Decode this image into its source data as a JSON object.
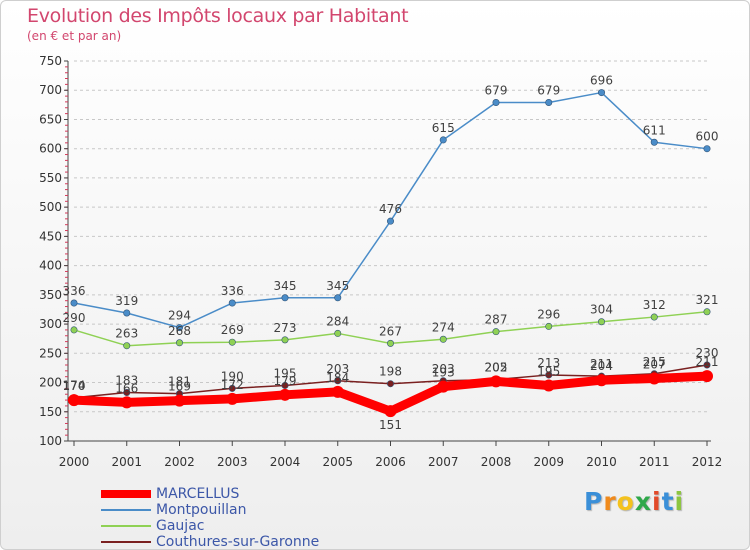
{
  "header": {
    "title": "Evolution des Impôts locaux par Habitant",
    "subtitle": "(en € et par an)"
  },
  "logo": {
    "letters": [
      "P",
      "r",
      "o",
      "x",
      "i",
      "t",
      "i"
    ],
    "colors": [
      "#3a8fd8",
      "#f08a1c",
      "#f4c21e",
      "#2ea84a",
      "#e24a2a",
      "#3a8fd8",
      "#8dc63f"
    ]
  },
  "chart_data": {
    "type": "line",
    "title": "Evolution des Impôts locaux par Habitant",
    "subtitle": "(en € et par an)",
    "xlabel": "",
    "ylabel": "",
    "x": [
      "2000",
      "2001",
      "2002",
      "2003",
      "2004",
      "2005",
      "2006",
      "2007",
      "2008",
      "2009",
      "2010",
      "2011",
      "2012"
    ],
    "ylim": [
      100,
      750
    ],
    "yticks": [
      100,
      150,
      200,
      250,
      300,
      350,
      400,
      450,
      500,
      550,
      600,
      650,
      700,
      750
    ],
    "grid": "horizontal dashed",
    "legend_position": "bottom-left",
    "series": [
      {
        "name": "MARCELLUS",
        "color": "#ff0000",
        "values": [
          170,
          166,
          169,
          172,
          179,
          184,
          151,
          193,
          202,
          195,
          204,
          207,
          211
        ],
        "labels": [
          "170",
          "166",
          "169",
          "172",
          "179",
          "184",
          "151",
          "193",
          "202",
          "195",
          "204",
          "207",
          "211"
        ]
      },
      {
        "name": "Montpouillan",
        "color": "#4a8cc8",
        "values": [
          336,
          319,
          294,
          336,
          345,
          345,
          476,
          615,
          679,
          679,
          696,
          611,
          600
        ],
        "labels": [
          "336",
          "319",
          "294",
          "336",
          "345",
          "345",
          "476",
          "615",
          "679",
          "679",
          "696",
          "611",
          "600"
        ]
      },
      {
        "name": "Gaujac",
        "color": "#8fd154",
        "values": [
          290,
          263,
          268,
          269,
          273,
          284,
          267,
          274,
          287,
          296,
          304,
          312,
          321
        ],
        "labels": [
          "290",
          "263",
          "268",
          "269",
          "273",
          "284",
          "267",
          "274",
          "287",
          "296",
          "304",
          "312",
          "321"
        ]
      },
      {
        "name": "Couthures-sur-Garonne",
        "color": "#7a2020",
        "values": [
          174,
          183,
          181,
          190,
          195,
          203,
          198,
          203,
          205,
          213,
          211,
          215,
          230
        ],
        "labels": [
          "174",
          "183",
          "181",
          "190",
          "195",
          "203",
          "198",
          "203",
          "205",
          "213",
          "211",
          "215",
          "230"
        ]
      }
    ]
  }
}
